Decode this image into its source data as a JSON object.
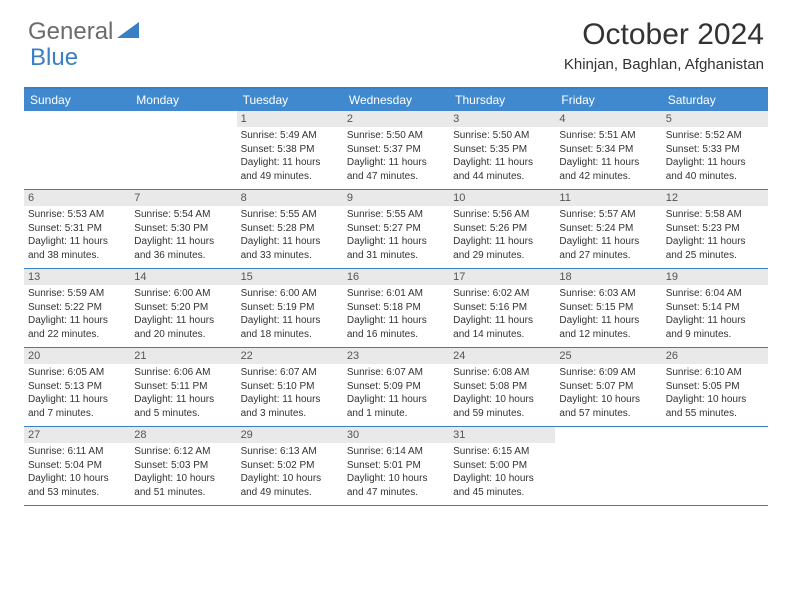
{
  "logo": {
    "text1": "General",
    "text2": "Blue"
  },
  "title": "October 2024",
  "location": "Khinjan, Baghlan, Afghanistan",
  "colors": {
    "header_bg": "#4089cf",
    "border": "#3a7fc4",
    "daynum_bg": "#e9e9e9",
    "text": "#333333",
    "logo_gray": "#6b6b6b",
    "logo_blue": "#3a7fc4"
  },
  "day_names": [
    "Sunday",
    "Monday",
    "Tuesday",
    "Wednesday",
    "Thursday",
    "Friday",
    "Saturday"
  ],
  "weeks": [
    [
      null,
      null,
      {
        "n": "1",
        "sr": "Sunrise: 5:49 AM",
        "ss": "Sunset: 5:38 PM",
        "dl": "Daylight: 11 hours and 49 minutes."
      },
      {
        "n": "2",
        "sr": "Sunrise: 5:50 AM",
        "ss": "Sunset: 5:37 PM",
        "dl": "Daylight: 11 hours and 47 minutes."
      },
      {
        "n": "3",
        "sr": "Sunrise: 5:50 AM",
        "ss": "Sunset: 5:35 PM",
        "dl": "Daylight: 11 hours and 44 minutes."
      },
      {
        "n": "4",
        "sr": "Sunrise: 5:51 AM",
        "ss": "Sunset: 5:34 PM",
        "dl": "Daylight: 11 hours and 42 minutes."
      },
      {
        "n": "5",
        "sr": "Sunrise: 5:52 AM",
        "ss": "Sunset: 5:33 PM",
        "dl": "Daylight: 11 hours and 40 minutes."
      }
    ],
    [
      {
        "n": "6",
        "sr": "Sunrise: 5:53 AM",
        "ss": "Sunset: 5:31 PM",
        "dl": "Daylight: 11 hours and 38 minutes."
      },
      {
        "n": "7",
        "sr": "Sunrise: 5:54 AM",
        "ss": "Sunset: 5:30 PM",
        "dl": "Daylight: 11 hours and 36 minutes."
      },
      {
        "n": "8",
        "sr": "Sunrise: 5:55 AM",
        "ss": "Sunset: 5:28 PM",
        "dl": "Daylight: 11 hours and 33 minutes."
      },
      {
        "n": "9",
        "sr": "Sunrise: 5:55 AM",
        "ss": "Sunset: 5:27 PM",
        "dl": "Daylight: 11 hours and 31 minutes."
      },
      {
        "n": "10",
        "sr": "Sunrise: 5:56 AM",
        "ss": "Sunset: 5:26 PM",
        "dl": "Daylight: 11 hours and 29 minutes."
      },
      {
        "n": "11",
        "sr": "Sunrise: 5:57 AM",
        "ss": "Sunset: 5:24 PM",
        "dl": "Daylight: 11 hours and 27 minutes."
      },
      {
        "n": "12",
        "sr": "Sunrise: 5:58 AM",
        "ss": "Sunset: 5:23 PM",
        "dl": "Daylight: 11 hours and 25 minutes."
      }
    ],
    [
      {
        "n": "13",
        "sr": "Sunrise: 5:59 AM",
        "ss": "Sunset: 5:22 PM",
        "dl": "Daylight: 11 hours and 22 minutes."
      },
      {
        "n": "14",
        "sr": "Sunrise: 6:00 AM",
        "ss": "Sunset: 5:20 PM",
        "dl": "Daylight: 11 hours and 20 minutes."
      },
      {
        "n": "15",
        "sr": "Sunrise: 6:00 AM",
        "ss": "Sunset: 5:19 PM",
        "dl": "Daylight: 11 hours and 18 minutes."
      },
      {
        "n": "16",
        "sr": "Sunrise: 6:01 AM",
        "ss": "Sunset: 5:18 PM",
        "dl": "Daylight: 11 hours and 16 minutes."
      },
      {
        "n": "17",
        "sr": "Sunrise: 6:02 AM",
        "ss": "Sunset: 5:16 PM",
        "dl": "Daylight: 11 hours and 14 minutes."
      },
      {
        "n": "18",
        "sr": "Sunrise: 6:03 AM",
        "ss": "Sunset: 5:15 PM",
        "dl": "Daylight: 11 hours and 12 minutes."
      },
      {
        "n": "19",
        "sr": "Sunrise: 6:04 AM",
        "ss": "Sunset: 5:14 PM",
        "dl": "Daylight: 11 hours and 9 minutes."
      }
    ],
    [
      {
        "n": "20",
        "sr": "Sunrise: 6:05 AM",
        "ss": "Sunset: 5:13 PM",
        "dl": "Daylight: 11 hours and 7 minutes."
      },
      {
        "n": "21",
        "sr": "Sunrise: 6:06 AM",
        "ss": "Sunset: 5:11 PM",
        "dl": "Daylight: 11 hours and 5 minutes."
      },
      {
        "n": "22",
        "sr": "Sunrise: 6:07 AM",
        "ss": "Sunset: 5:10 PM",
        "dl": "Daylight: 11 hours and 3 minutes."
      },
      {
        "n": "23",
        "sr": "Sunrise: 6:07 AM",
        "ss": "Sunset: 5:09 PM",
        "dl": "Daylight: 11 hours and 1 minute."
      },
      {
        "n": "24",
        "sr": "Sunrise: 6:08 AM",
        "ss": "Sunset: 5:08 PM",
        "dl": "Daylight: 10 hours and 59 minutes."
      },
      {
        "n": "25",
        "sr": "Sunrise: 6:09 AM",
        "ss": "Sunset: 5:07 PM",
        "dl": "Daylight: 10 hours and 57 minutes."
      },
      {
        "n": "26",
        "sr": "Sunrise: 6:10 AM",
        "ss": "Sunset: 5:05 PM",
        "dl": "Daylight: 10 hours and 55 minutes."
      }
    ],
    [
      {
        "n": "27",
        "sr": "Sunrise: 6:11 AM",
        "ss": "Sunset: 5:04 PM",
        "dl": "Daylight: 10 hours and 53 minutes."
      },
      {
        "n": "28",
        "sr": "Sunrise: 6:12 AM",
        "ss": "Sunset: 5:03 PM",
        "dl": "Daylight: 10 hours and 51 minutes."
      },
      {
        "n": "29",
        "sr": "Sunrise: 6:13 AM",
        "ss": "Sunset: 5:02 PM",
        "dl": "Daylight: 10 hours and 49 minutes."
      },
      {
        "n": "30",
        "sr": "Sunrise: 6:14 AM",
        "ss": "Sunset: 5:01 PM",
        "dl": "Daylight: 10 hours and 47 minutes."
      },
      {
        "n": "31",
        "sr": "Sunrise: 6:15 AM",
        "ss": "Sunset: 5:00 PM",
        "dl": "Daylight: 10 hours and 45 minutes."
      },
      null,
      null
    ]
  ]
}
